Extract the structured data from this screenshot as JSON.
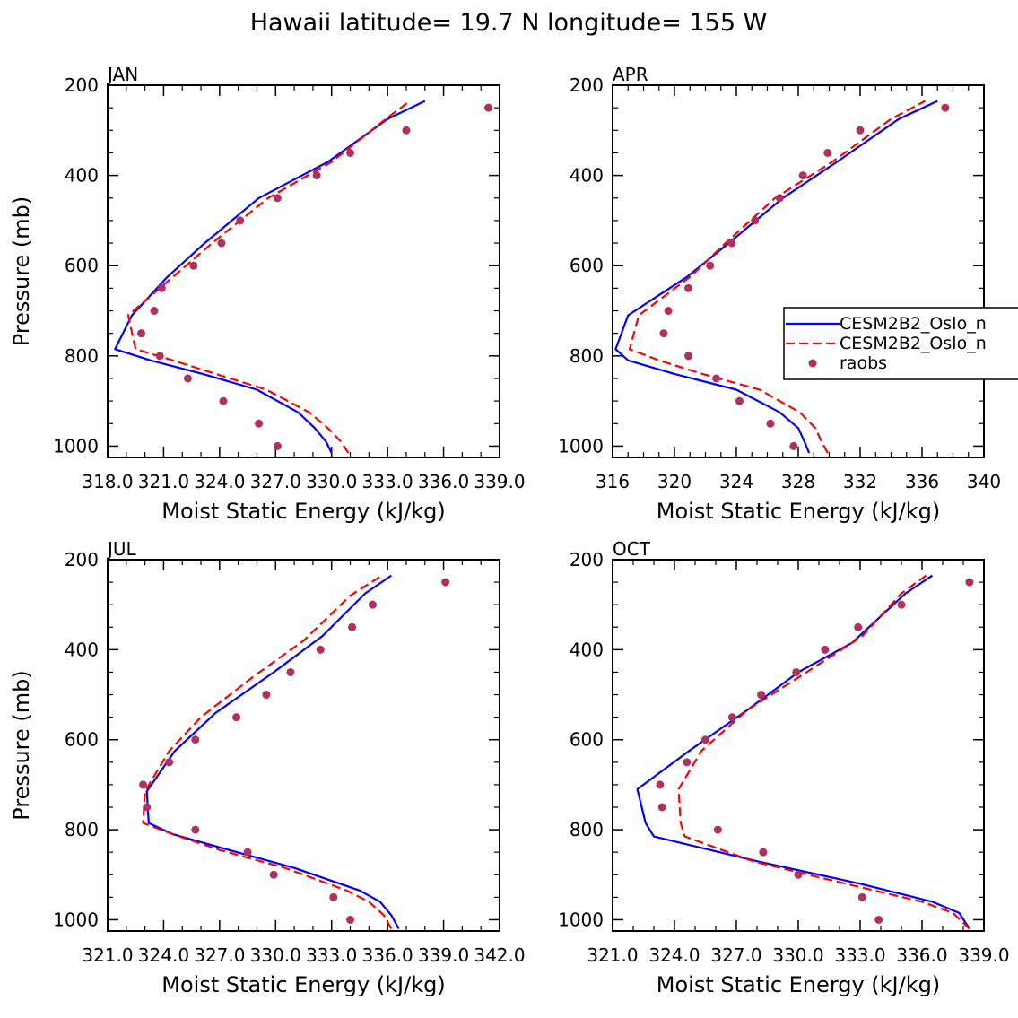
{
  "suptitle": "Hawaii  latitude= 19.7 N longitude= 155 W",
  "series_meta": [
    {
      "name": "CESM2B2_Oslo_n",
      "color": "#0000ff",
      "style": "solid"
    },
    {
      "name": "CESM2B2_Oslo_n",
      "color": "#ff0000",
      "style": "dashed"
    },
    {
      "name": "raobs",
      "color": "#b03060",
      "style": "dots"
    }
  ],
  "chart_data": [
    {
      "type": "line",
      "title": "JAN",
      "xlabel": "Moist Static Energy (kJ/kg)",
      "ylabel": "Pressure (mb)",
      "xlim": [
        318.0,
        339.0
      ],
      "xticks": [
        "318.0",
        "321.0",
        "324.0",
        "327.0",
        "330.0",
        "333.0",
        "336.0",
        "339.0"
      ],
      "xtick_values": [
        318,
        321,
        324,
        327,
        330,
        333,
        336,
        339
      ],
      "xminor": [
        319,
        320,
        322,
        323,
        325,
        326,
        328,
        329,
        331,
        332,
        334,
        335,
        337,
        338
      ],
      "ylim": [
        200,
        1025
      ],
      "yticks": [
        "200",
        "400",
        "600",
        "800",
        "1000"
      ],
      "legend": false,
      "series": [
        {
          "name": "CESM2B2_Oslo_n",
          "x": [
            330.0,
            329.7,
            329.1,
            328.2,
            326.0,
            323.1,
            320.3,
            318.4,
            319.3,
            321.2,
            323.2,
            326.1,
            329.8,
            333.0,
            335.0
          ],
          "y": [
            1015,
            990,
            960,
            925,
            875,
            840,
            810,
            785,
            710,
            625,
            550,
            450,
            370,
            275,
            235
          ]
        },
        {
          "name": "CESM2B2_Oslo_n",
          "x": [
            330.9,
            330.5,
            329.8,
            328.8,
            326.5,
            323.8,
            321.5,
            319.5,
            319.1,
            321.5,
            323.6,
            326.6,
            330.0,
            332.9,
            334.2
          ],
          "y": [
            1015,
            990,
            960,
            925,
            875,
            840,
            810,
            785,
            710,
            625,
            550,
            450,
            370,
            275,
            235
          ]
        },
        {
          "name": "raobs",
          "x": [
            327.1,
            326.1,
            324.2,
            322.3,
            320.8,
            319.8,
            320.5,
            320.9,
            322.6,
            324.1,
            325.1,
            327.1,
            329.2,
            331.0,
            334.0,
            338.4
          ],
          "y": [
            1000,
            950,
            900,
            850,
            800,
            750,
            700,
            650,
            600,
            550,
            500,
            450,
            400,
            350,
            300,
            250
          ]
        }
      ]
    },
    {
      "type": "line",
      "title": "APR",
      "xlabel": "Moist Static Energy (kJ/kg)",
      "ylabel": "",
      "xlim": [
        316,
        340
      ],
      "xticks": [
        "316",
        "320",
        "324",
        "328",
        "332",
        "336",
        "340"
      ],
      "xtick_values": [
        316,
        320,
        324,
        328,
        332,
        336,
        340
      ],
      "xminor": [
        317,
        318,
        319,
        321,
        322,
        323,
        325,
        326,
        327,
        329,
        330,
        331,
        333,
        334,
        335,
        337,
        338,
        339
      ],
      "ylim": [
        200,
        1025
      ],
      "yticks": [
        "200",
        "400",
        "600",
        "800",
        "1000"
      ],
      "legend": true,
      "series": [
        {
          "name": "CESM2B2_Oslo_n",
          "x": [
            328.7,
            328.4,
            328.0,
            326.8,
            324.0,
            320.0,
            317.0,
            316.2,
            317.0,
            320.8,
            323.5,
            327.0,
            330.5,
            334.5,
            337.0
          ],
          "y": [
            1015,
            990,
            960,
            925,
            875,
            840,
            810,
            785,
            710,
            625,
            550,
            450,
            370,
            275,
            235
          ]
        },
        {
          "name": "CESM2B2_Oslo_n",
          "x": [
            329.9,
            329.5,
            329.1,
            328.1,
            325.5,
            321.8,
            319.0,
            317.1,
            317.7,
            321.0,
            323.3,
            326.5,
            330.2,
            334.0,
            336.2
          ],
          "y": [
            1015,
            990,
            960,
            925,
            875,
            840,
            810,
            785,
            710,
            625,
            550,
            450,
            370,
            275,
            235
          ]
        },
        {
          "name": "raobs",
          "x": [
            327.7,
            326.2,
            324.2,
            322.7,
            320.9,
            319.3,
            319.6,
            320.9,
            322.3,
            323.7,
            325.2,
            326.8,
            328.3,
            329.9,
            332.0,
            337.5
          ],
          "y": [
            1000,
            950,
            900,
            850,
            800,
            750,
            700,
            650,
            600,
            550,
            500,
            450,
            400,
            350,
            300,
            250
          ]
        }
      ]
    },
    {
      "type": "line",
      "title": "JUL",
      "xlabel": "Moist Static Energy (kJ/kg)",
      "ylabel": "Pressure (mb)",
      "xlim": [
        321.0,
        342.0
      ],
      "xticks": [
        "321.0",
        "324.0",
        "327.0",
        "330.0",
        "333.0",
        "336.0",
        "339.0",
        "342.0"
      ],
      "xtick_values": [
        321,
        324,
        327,
        330,
        333,
        336,
        339,
        342
      ],
      "xminor": [
        322,
        323,
        325,
        326,
        328,
        329,
        331,
        332,
        334,
        335,
        337,
        338,
        340,
        341
      ],
      "ylim": [
        200,
        1025
      ],
      "yticks": [
        "200",
        "400",
        "600",
        "800",
        "1000"
      ],
      "legend": false,
      "series": [
        {
          "name": "CESM2B2_Oslo_n",
          "x": [
            336.6,
            336.2,
            335.6,
            334.5,
            331.0,
            327.5,
            324.5,
            323.2,
            323.1,
            324.6,
            326.8,
            329.9,
            332.5,
            334.8,
            336.2
          ],
          "y": [
            1020,
            990,
            960,
            935,
            885,
            845,
            810,
            785,
            715,
            625,
            540,
            450,
            370,
            275,
            235
          ]
        },
        {
          "name": "CESM2B2_Oslo_n",
          "x": [
            336.2,
            335.8,
            335.0,
            333.8,
            330.5,
            327.0,
            324.5,
            322.9,
            323.0,
            324.3,
            326.0,
            328.8,
            331.5,
            334.0,
            335.7
          ],
          "y": [
            1020,
            990,
            960,
            935,
            885,
            845,
            810,
            785,
            715,
            625,
            550,
            460,
            380,
            280,
            235
          ]
        },
        {
          "name": "raobs",
          "x": [
            334.0,
            333.1,
            329.9,
            328.5,
            325.7,
            323.1,
            322.9,
            324.3,
            325.7,
            327.9,
            329.5,
            330.8,
            332.4,
            334.1,
            335.2,
            339.1
          ],
          "y": [
            1000,
            950,
            900,
            850,
            800,
            750,
            700,
            650,
            600,
            550,
            500,
            450,
            400,
            350,
            300,
            250
          ]
        }
      ]
    },
    {
      "type": "line",
      "title": "OCT",
      "xlabel": "Moist Static Energy (kJ/kg)",
      "ylabel": "",
      "xlim": [
        321.0,
        339.0
      ],
      "xticks": [
        "321.0",
        "324.0",
        "327.0",
        "330.0",
        "333.0",
        "336.0",
        "339.0"
      ],
      "xtick_values": [
        321,
        324,
        327,
        330,
        333,
        336,
        339
      ],
      "xminor": [
        322,
        323,
        325,
        326,
        328,
        329,
        331,
        332,
        334,
        335,
        337,
        338
      ],
      "ylim": [
        200,
        1025
      ],
      "yticks": [
        "200",
        "400",
        "600",
        "800",
        "1000"
      ],
      "legend": false,
      "series": [
        {
          "name": "CESM2B2_Oslo_n",
          "x": [
            338.3,
            337.8,
            336.5,
            333.0,
            328.0,
            323.0,
            322.6,
            322.2,
            324.7,
            327.5,
            330.0,
            332.6,
            335.2,
            336.5
          ],
          "y": [
            1020,
            985,
            960,
            920,
            870,
            815,
            785,
            710,
            625,
            535,
            450,
            385,
            275,
            235
          ]
        },
        {
          "name": "CESM2B2_Oslo_n",
          "x": [
            338.3,
            337.5,
            336.0,
            332.3,
            327.8,
            324.5,
            324.3,
            324.2,
            325.3,
            327.5,
            330.4,
            333.1,
            335.0,
            336.2
          ],
          "y": [
            1020,
            985,
            960,
            920,
            870,
            815,
            785,
            710,
            625,
            535,
            450,
            370,
            275,
            235
          ]
        },
        {
          "name": "raobs",
          "x": [
            333.9,
            333.1,
            330.0,
            328.3,
            326.1,
            323.4,
            323.3,
            324.6,
            325.5,
            326.8,
            328.2,
            329.9,
            331.3,
            332.9,
            335.0,
            338.3
          ],
          "y": [
            1000,
            950,
            900,
            850,
            800,
            750,
            700,
            650,
            600,
            550,
            500,
            450,
            400,
            350,
            300,
            250
          ]
        }
      ]
    }
  ]
}
